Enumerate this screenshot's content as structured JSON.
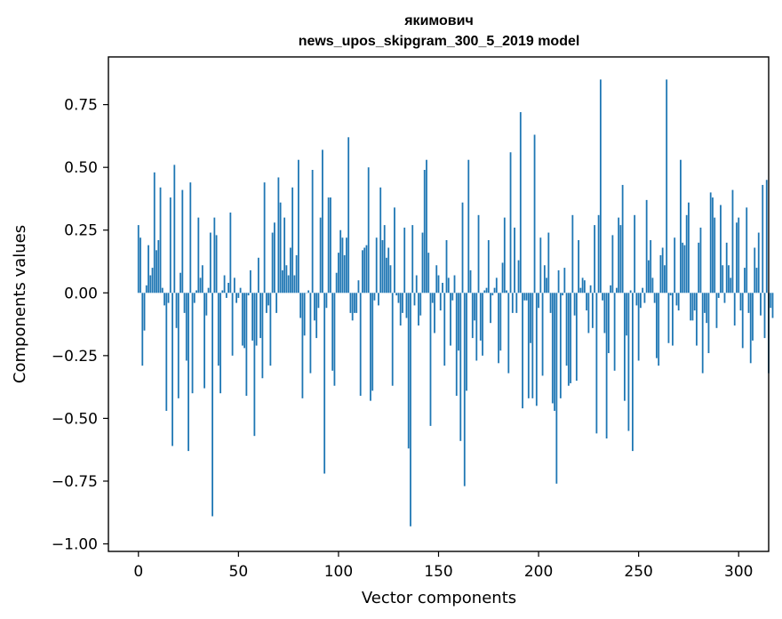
{
  "chart_data": {
    "type": "bar",
    "title": "якимович",
    "subtitle": "news_upos_skipgram_300_5_2019 model",
    "xlabel": "Vector components",
    "ylabel": "Components values",
    "xlim": [
      -15,
      315
    ],
    "ylim": [
      -1.03,
      0.94
    ],
    "x_ticks": [
      0,
      50,
      100,
      150,
      200,
      250,
      300
    ],
    "y_ticks": [
      -1.0,
      -0.75,
      -0.5,
      -0.25,
      0.0,
      0.25,
      0.5,
      0.75
    ],
    "y_tick_labels": [
      "−1.00",
      "−0.75",
      "−0.50",
      "−0.25",
      "0.00",
      "0.25",
      "0.50",
      "0.75"
    ],
    "x_tick_labels": [
      "0",
      "50",
      "100",
      "150",
      "200",
      "250",
      "300"
    ],
    "bar_color": "#1f77b4",
    "grid": false,
    "values": [
      0.27,
      0.22,
      -0.29,
      -0.15,
      0.03,
      0.19,
      0.07,
      0.1,
      0.48,
      0.17,
      0.21,
      0.42,
      0.02,
      -0.05,
      -0.47,
      -0.04,
      0.38,
      -0.61,
      0.51,
      -0.14,
      -0.42,
      0.08,
      0.41,
      -0.08,
      -0.27,
      -0.63,
      0.44,
      -0.4,
      -0.04,
      0.01,
      0.3,
      0.06,
      0.11,
      -0.38,
      -0.09,
      0.02,
      0.24,
      -0.89,
      0.3,
      0.23,
      -0.29,
      -0.4,
      0.01,
      0.07,
      -0.02,
      0.04,
      0.32,
      -0.25,
      0.06,
      -0.04,
      -0.02,
      0.02,
      -0.21,
      -0.22,
      -0.41,
      -0.01,
      0.09,
      -0.19,
      -0.57,
      -0.21,
      0.14,
      -0.18,
      -0.34,
      0.44,
      -0.08,
      -0.05,
      -0.29,
      0.24,
      0.28,
      -0.08,
      0.46,
      0.36,
      0.09,
      0.3,
      0.11,
      0.07,
      0.18,
      0.42,
      0.07,
      0.15,
      0.53,
      -0.1,
      -0.42,
      -0.17,
      0.0,
      0.01,
      -0.32,
      0.49,
      -0.11,
      -0.18,
      -0.06,
      0.3,
      0.57,
      -0.72,
      -0.06,
      0.38,
      0.38,
      -0.31,
      -0.37,
      0.08,
      0.16,
      0.25,
      0.22,
      0.15,
      0.22,
      0.62,
      -0.08,
      -0.11,
      -0.08,
      -0.08,
      0.05,
      -0.41,
      0.17,
      0.18,
      0.19,
      0.5,
      -0.43,
      -0.39,
      -0.03,
      0.22,
      -0.05,
      0.42,
      0.21,
      0.27,
      0.14,
      0.18,
      0.11,
      -0.37,
      0.34,
      -0.01,
      -0.04,
      -0.13,
      -0.08,
      0.26,
      -0.1,
      -0.62,
      -0.93,
      0.27,
      -0.05,
      0.07,
      -0.13,
      -0.09,
      0.24,
      0.49,
      0.53,
      0.16,
      -0.53,
      -0.04,
      -0.16,
      0.11,
      0.07,
      -0.07,
      0.04,
      -0.29,
      0.21,
      0.06,
      -0.21,
      -0.03,
      0.07,
      -0.41,
      -0.23,
      -0.59,
      0.36,
      -0.77,
      -0.39,
      0.53,
      0.09,
      -0.18,
      -0.11,
      -0.27,
      0.31,
      -0.19,
      -0.25,
      0.01,
      0.02,
      0.21,
      -0.12,
      -0.01,
      0.02,
      0.06,
      -0.28,
      -0.23,
      0.12,
      0.3,
      0.01,
      -0.32,
      0.56,
      -0.08,
      0.26,
      -0.08,
      0.13,
      0.72,
      -0.46,
      -0.03,
      -0.03,
      -0.42,
      -0.2,
      -0.42,
      0.63,
      -0.45,
      -0.06,
      0.22,
      -0.33,
      0.11,
      0.06,
      0.24,
      -0.08,
      -0.44,
      -0.47,
      -0.76,
      0.09,
      -0.42,
      -0.01,
      0.1,
      -0.29,
      -0.37,
      -0.36,
      0.31,
      -0.09,
      -0.35,
      0.21,
      0.02,
      0.06,
      0.05,
      -0.07,
      -0.16,
      0.03,
      -0.14,
      0.27,
      -0.56,
      0.31,
      0.85,
      -0.03,
      -0.16,
      -0.58,
      -0.24,
      0.03,
      0.23,
      -0.31,
      0.02,
      0.3,
      0.27,
      0.43,
      -0.43,
      -0.17,
      -0.55,
      0.01,
      -0.63,
      0.31,
      -0.05,
      -0.27,
      -0.06,
      0.02,
      -0.04,
      0.37,
      0.13,
      0.21,
      0.06,
      -0.04,
      -0.26,
      -0.29,
      0.15,
      0.18,
      0.11,
      0.85,
      -0.2,
      -0.01,
      -0.21,
      0.22,
      -0.05,
      -0.07,
      0.53,
      0.2,
      0.19,
      0.31,
      0.36,
      -0.11,
      -0.11,
      -0.07,
      -0.21,
      0.2,
      0.26,
      -0.32,
      -0.08,
      -0.12,
      -0.24,
      0.4,
      0.38,
      0.3,
      -0.14,
      -0.02,
      0.35,
      0.11,
      -0.04,
      0.2,
      0.11,
      0.06,
      0.41,
      -0.13,
      0.28,
      0.3,
      -0.07,
      -0.22,
      0.1,
      0.34,
      -0.08,
      -0.28,
      -0.19,
      0.18,
      0.1,
      0.24,
      -0.09,
      0.43,
      -0.18,
      0.45,
      -0.32,
      -0.06,
      -0.1
    ]
  }
}
